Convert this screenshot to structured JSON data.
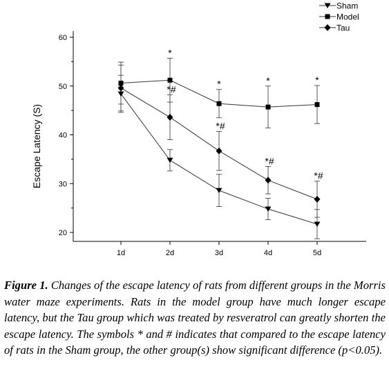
{
  "chart_data": {
    "type": "line",
    "title": "",
    "xlabel": "",
    "ylabel": "Escape Latency (S)",
    "categories": [
      "1d",
      "2d",
      "3d",
      "4d",
      "5d"
    ],
    "ylim": [
      18,
      62
    ],
    "yticks": [
      20,
      30,
      40,
      50,
      60
    ],
    "grid": false,
    "legend_position": "top-right",
    "series": [
      {
        "name": "Sham",
        "marker": "triangle-down",
        "values": [
          48.4,
          34.8,
          28.6,
          24.8,
          21.7
        ],
        "error": [
          3.8,
          2.2,
          3.3,
          2.2,
          3.0
        ],
        "annotations": [
          "",
          "",
          "",
          "",
          ""
        ]
      },
      {
        "name": "Model",
        "marker": "square",
        "values": [
          50.6,
          51.2,
          46.4,
          45.7,
          46.2
        ],
        "error": [
          4.3,
          4.5,
          2.9,
          4.3,
          3.9
        ],
        "annotations": [
          "",
          "*",
          "*",
          "*",
          "*"
        ]
      },
      {
        "name": "Tau",
        "marker": "diamond",
        "values": [
          49.6,
          43.6,
          36.7,
          30.7,
          26.8
        ],
        "error": [
          4.7,
          4.6,
          4.0,
          2.8,
          3.7
        ],
        "annotations": [
          "",
          "*#",
          "*#",
          "*#",
          "*#"
        ]
      }
    ]
  },
  "caption": {
    "label": "Figure 1.",
    "text": "Changes of the escape latency of rats from different groups in the Morris water maze experiments. Rats in the model group have much longer escape latency, but the Tau group which was treated by resveratrol can greatly shorten the escape latency. The symbols * and # indicates that compared to the escape latency of rats in the Sham group, the other group(s) show significant difference (p<0.05)."
  }
}
